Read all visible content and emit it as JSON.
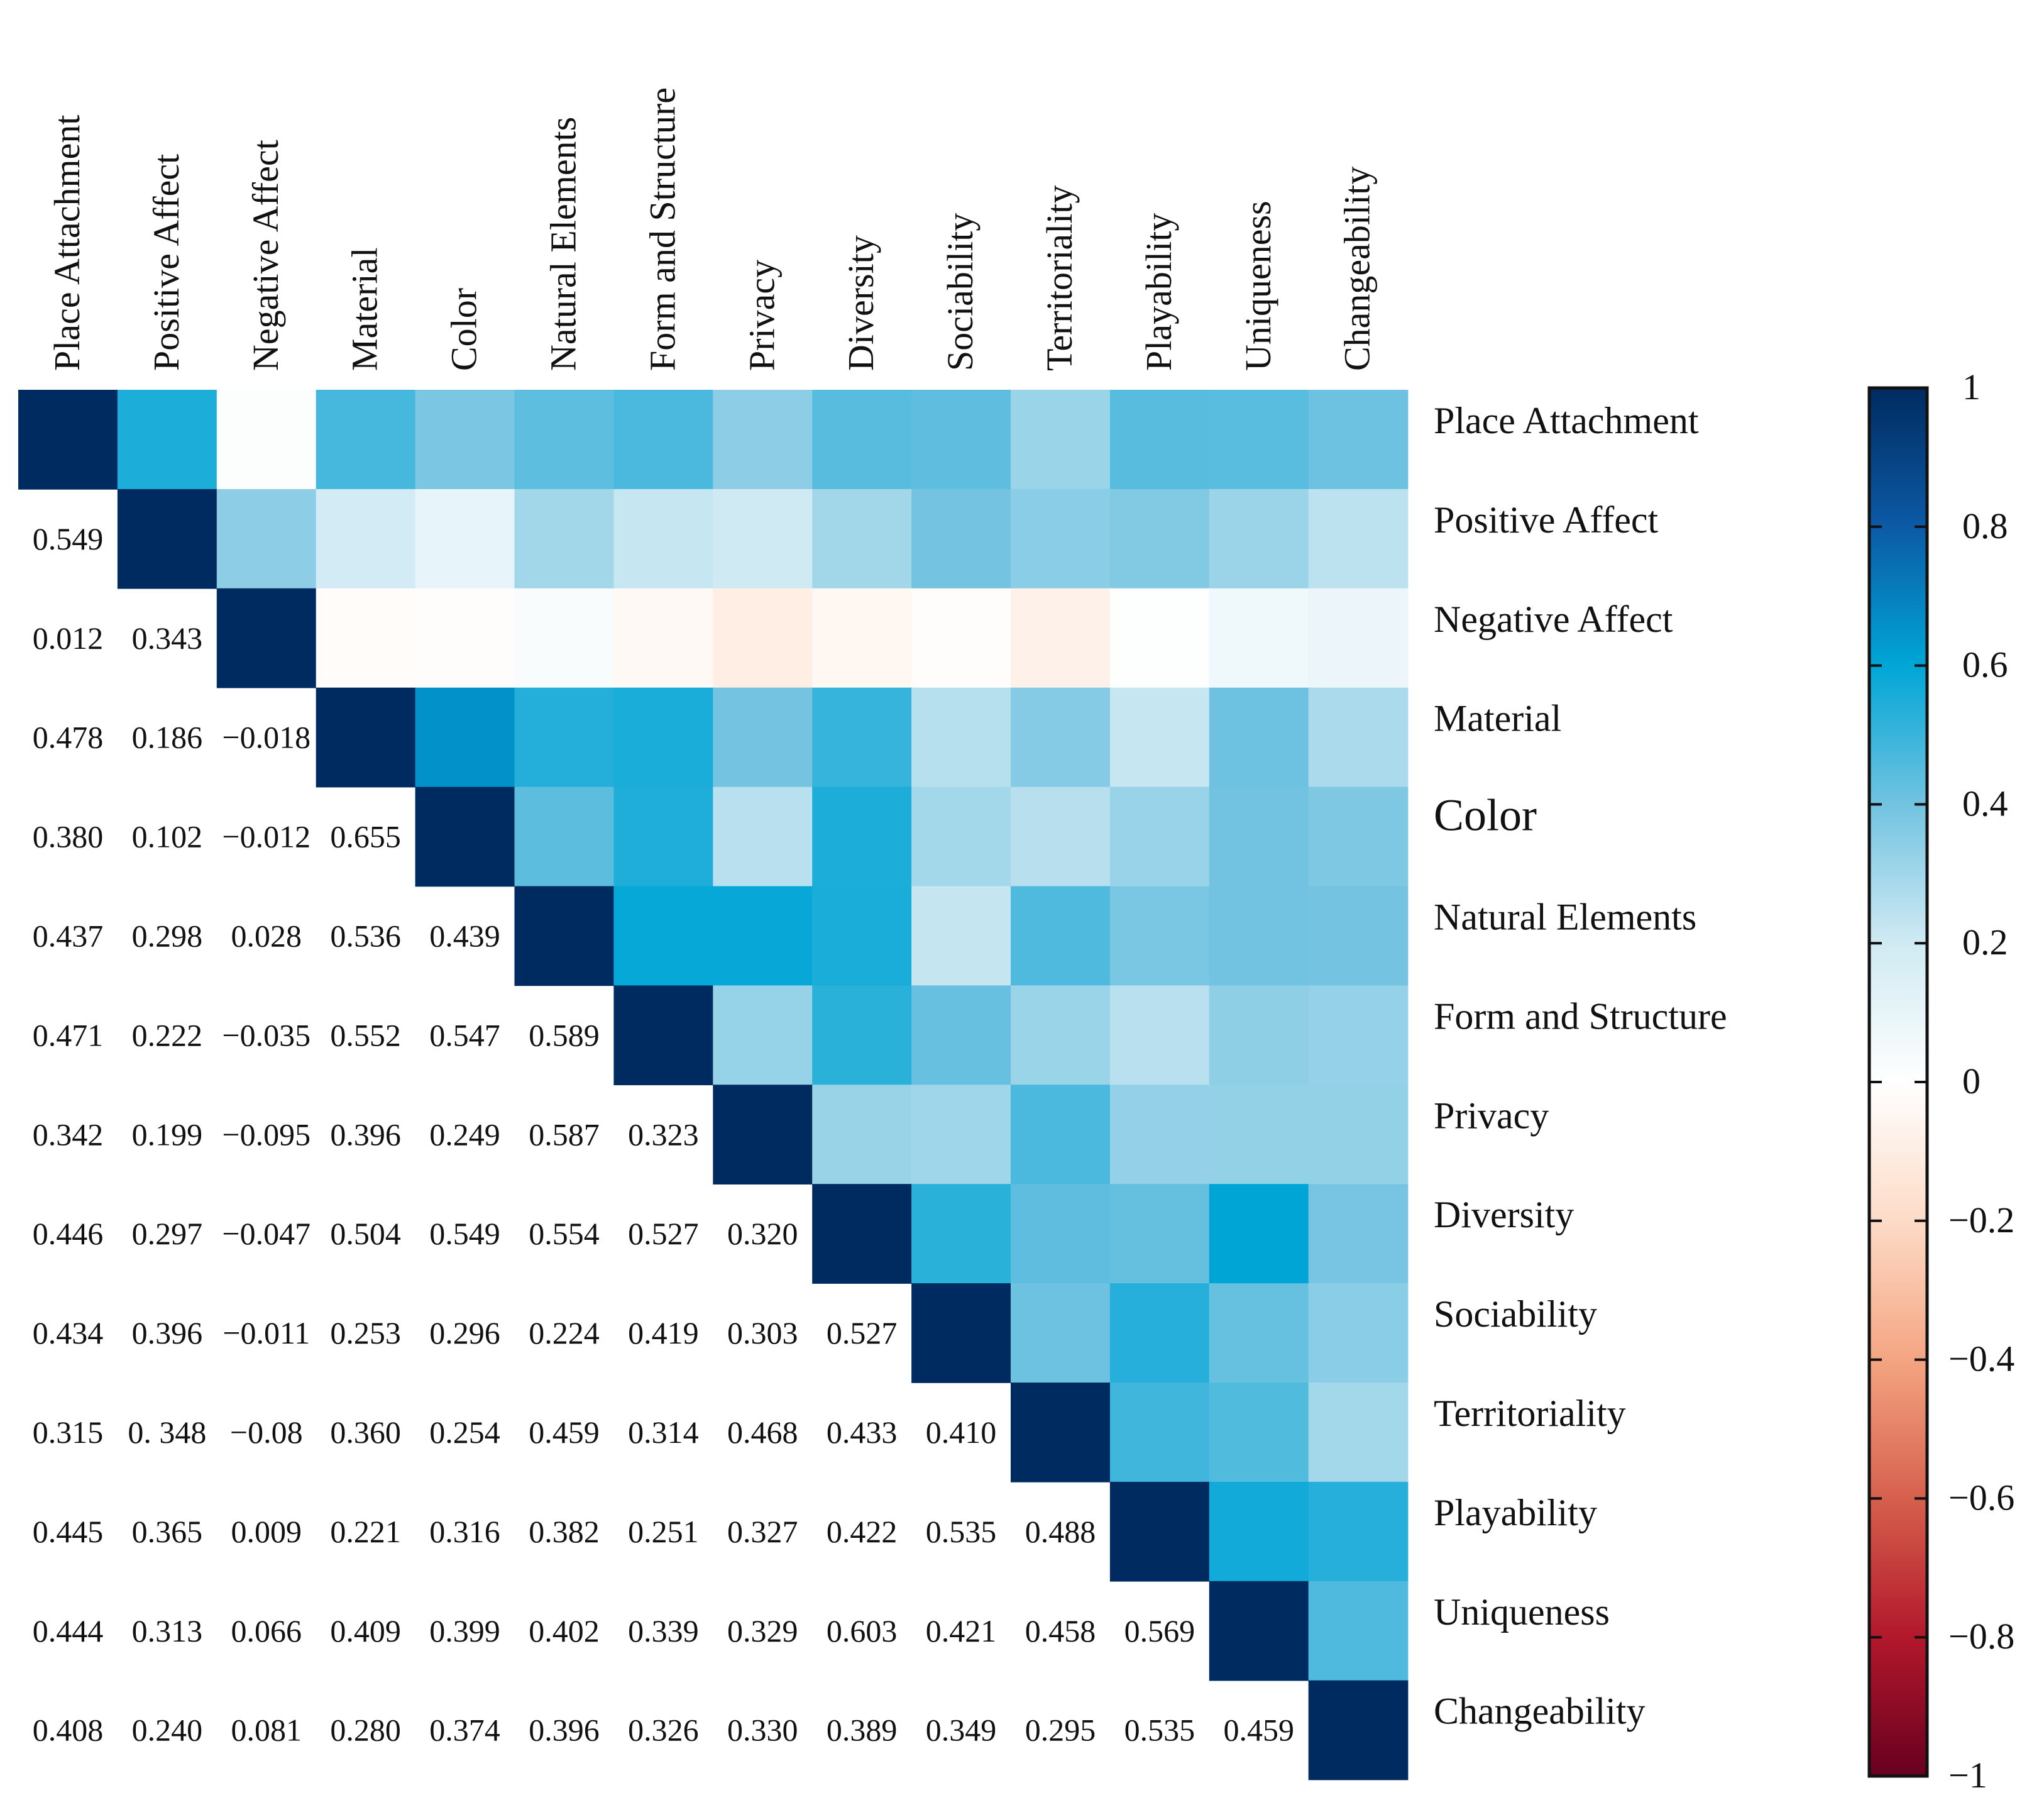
{
  "chart_data": {
    "type": "heatmap",
    "title": "",
    "variables": [
      "Place Attachment",
      "Positive Affect",
      "Negative Affect",
      "Material",
      "Color",
      "Natural Elements",
      "Form and Structure",
      "Privacy",
      "Diversity",
      "Sociability",
      "Territoriality",
      "Playability",
      "Uniqueness",
      "Changeability"
    ],
    "lower_triangle_labels": [
      [],
      [
        "0.549"
      ],
      [
        "0.012",
        "0.343"
      ],
      [
        "0.478",
        "0.186",
        "−0.018"
      ],
      [
        "0.380",
        "0.102",
        "−0.012",
        "0.655"
      ],
      [
        "0.437",
        "0.298",
        "0.028",
        "0.536",
        "0.439"
      ],
      [
        "0.471",
        "0.222",
        "−0.035",
        "0.552",
        "0.547",
        "0.589"
      ],
      [
        "0.342",
        "0.199",
        "−0.095",
        "0.396",
        "0.249",
        "0.587",
        "0.323"
      ],
      [
        "0.446",
        "0.297",
        "−0.047",
        "0.504",
        "0.549",
        "0.554",
        "0.527",
        "0.320"
      ],
      [
        "0.434",
        "0.396",
        "−0.011",
        "0.253",
        "0.296",
        "0.224",
        "0.419",
        "0.303",
        "0.527"
      ],
      [
        "0.315",
        "0. 348",
        "−0.08",
        "0.360",
        "0.254",
        "0.459",
        "0.314",
        "0.468",
        "0.433",
        "0.410"
      ],
      [
        "0.445",
        "0.365",
        "0.009",
        "0.221",
        "0.316",
        "0.382",
        "0.251",
        "0.327",
        "0.422",
        "0.535",
        "0.488"
      ],
      [
        "0.444",
        "0.313",
        "0.066",
        "0.409",
        "0.399",
        "0.402",
        "0.339",
        "0.329",
        "0.603",
        "0.421",
        "0.458",
        "0.569"
      ],
      [
        "0.408",
        "0.240",
        "0.081",
        "0.280",
        "0.374",
        "0.396",
        "0.326",
        "0.330",
        "0.389",
        "0.349",
        "0.295",
        "0.535",
        "0.459"
      ]
    ],
    "lower_triangle_values": [
      [],
      [
        0.549
      ],
      [
        0.012,
        0.343
      ],
      [
        0.478,
        0.186,
        -0.018
      ],
      [
        0.38,
        0.102,
        -0.012,
        0.655
      ],
      [
        0.437,
        0.298,
        0.028,
        0.536,
        0.439
      ],
      [
        0.471,
        0.222,
        -0.035,
        0.552,
        0.547,
        0.589
      ],
      [
        0.342,
        0.199,
        -0.095,
        0.396,
        0.249,
        0.587,
        0.323
      ],
      [
        0.446,
        0.297,
        -0.047,
        0.504,
        0.549,
        0.554,
        0.527,
        0.32
      ],
      [
        0.434,
        0.396,
        -0.011,
        0.253,
        0.296,
        0.224,
        0.419,
        0.303,
        0.527
      ],
      [
        0.315,
        0.348,
        -0.08,
        0.36,
        0.254,
        0.459,
        0.314,
        0.468,
        0.433,
        0.41
      ],
      [
        0.445,
        0.365,
        0.009,
        0.221,
        0.316,
        0.382,
        0.251,
        0.327,
        0.422,
        0.535,
        0.488
      ],
      [
        0.444,
        0.313,
        0.066,
        0.409,
        0.399,
        0.402,
        0.339,
        0.329,
        0.603,
        0.421,
        0.458,
        0.569
      ],
      [
        0.408,
        0.24,
        0.081,
        0.28,
        0.374,
        0.396,
        0.326,
        0.33,
        0.389,
        0.349,
        0.295,
        0.535,
        0.459
      ]
    ],
    "diagonal_value": 1,
    "upper_triangle": "color-coded cells",
    "colorbar": {
      "range": [
        -1,
        1
      ],
      "ticks": [
        "1",
        "0.8",
        "0.6",
        "0.4",
        "0.2",
        "0",
        "−0.2",
        "−0.4",
        "−0.6",
        "−0.8",
        "−1"
      ],
      "tick_values": [
        1,
        0.8,
        0.6,
        0.4,
        0.2,
        0,
        -0.2,
        -0.4,
        -0.6,
        -0.8,
        -1
      ],
      "colormap": "red-white-blue",
      "placement": "right"
    },
    "colors": {
      "diagonal": "#002b60",
      "positive_max": "#002b60",
      "zero": "#ffffff",
      "negative_max": "#67001f"
    }
  }
}
